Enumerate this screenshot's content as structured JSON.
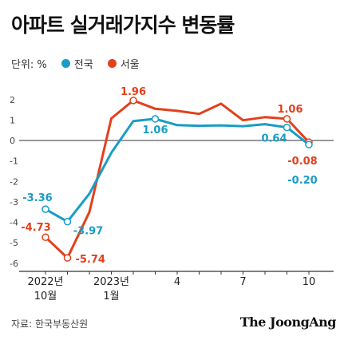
{
  "title": "아파트 실거래가지수 변동률",
  "legend": {
    "unit_label": "단위: %",
    "items": [
      {
        "label": "전국",
        "color": "#199cc7"
      },
      {
        "label": "서울",
        "color": "#e2401c"
      }
    ]
  },
  "chart_data": {
    "type": "line",
    "x": [
      "2022-10",
      "2022-11",
      "2022-12",
      "2023-01",
      "2023-02",
      "2023-03",
      "2023-04",
      "2023-05",
      "2023-06",
      "2023-07",
      "2023-08",
      "2023-09",
      "2023-10"
    ],
    "x_tick_labels": [
      {
        "index": 0,
        "line1": "2022년",
        "line2": "10월"
      },
      {
        "index": 3,
        "line1": "2023년",
        "line2": "1월"
      },
      {
        "index": 6,
        "line1": "4",
        "line2": ""
      },
      {
        "index": 9,
        "line1": "7",
        "line2": ""
      },
      {
        "index": 12,
        "line1": "10",
        "line2": ""
      }
    ],
    "ylim": [
      -6.4,
      2.5
    ],
    "y_ticks": [
      2,
      1,
      0,
      -1,
      -2,
      -3,
      -4,
      -5,
      -6
    ],
    "grid": false,
    "series": [
      {
        "name": "서울",
        "color": "#e2401c",
        "values": [
          -4.73,
          -5.74,
          -3.5,
          1.08,
          1.96,
          1.55,
          1.45,
          1.3,
          1.8,
          0.99,
          1.14,
          1.06,
          -0.08
        ]
      },
      {
        "name": "전국",
        "color": "#199cc7",
        "values": [
          -3.36,
          -3.97,
          -2.6,
          -0.6,
          0.95,
          1.06,
          0.75,
          0.72,
          0.74,
          0.7,
          0.8,
          0.64,
          -0.2
        ]
      }
    ],
    "annotations": [
      {
        "series": 1,
        "index": 0,
        "text": "-3.36",
        "dx": -10,
        "dy": -14,
        "anchor": "middle"
      },
      {
        "series": 0,
        "index": 0,
        "text": "-4.73",
        "dx": -12,
        "dy": -12,
        "anchor": "middle"
      },
      {
        "series": 1,
        "index": 1,
        "text": "-3.97",
        "dx": 26,
        "dy": 12,
        "anchor": "middle"
      },
      {
        "series": 0,
        "index": 1,
        "text": "-5.74",
        "dx": 10,
        "dy": 2,
        "anchor": "start"
      },
      {
        "series": 0,
        "index": 4,
        "text": "1.96",
        "dx": 0,
        "dy": -11,
        "anchor": "middle"
      },
      {
        "series": 1,
        "index": 5,
        "text": "1.06",
        "dx": 0,
        "dy": 14,
        "anchor": "middle"
      },
      {
        "series": 0,
        "index": 11,
        "text": "1.06",
        "dx": 4,
        "dy": -12,
        "anchor": "middle"
      },
      {
        "series": 1,
        "index": 11,
        "text": "0.64",
        "dx": -16,
        "dy": 14,
        "anchor": "middle"
      },
      {
        "series": 0,
        "index": 12,
        "text": "-0.08",
        "dx": -8,
        "dy": 24,
        "anchor": "middle"
      },
      {
        "series": 1,
        "index": 12,
        "text": "-0.20",
        "dx": -8,
        "dy": 45,
        "anchor": "middle"
      }
    ],
    "markers": [
      {
        "series": 0,
        "index": 0
      },
      {
        "series": 0,
        "index": 1
      },
      {
        "series": 0,
        "index": 4
      },
      {
        "series": 0,
        "index": 11
      },
      {
        "series": 0,
        "index": 12
      },
      {
        "series": 1,
        "index": 0
      },
      {
        "series": 1,
        "index": 1
      },
      {
        "series": 1,
        "index": 5
      },
      {
        "series": 1,
        "index": 11
      },
      {
        "series": 1,
        "index": 12
      }
    ]
  },
  "footer": {
    "source": "자료: 한국부동산원",
    "brand": "The JoongAng"
  }
}
